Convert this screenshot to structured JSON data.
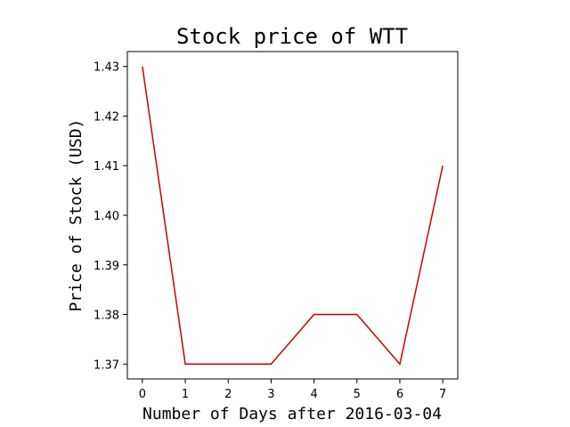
{
  "chart_data": {
    "type": "line",
    "title": "Stock price of WTT",
    "xlabel": "Number of Days after 2016-03-04",
    "ylabel": "Price of Stock (USD)",
    "x": [
      0,
      1,
      2,
      3,
      4,
      5,
      6,
      7
    ],
    "series": [
      {
        "values": [
          1.43,
          1.37,
          1.37,
          1.37,
          1.38,
          1.38,
          1.37,
          1.41
        ],
        "color": "#cc0000"
      }
    ],
    "xlim": [
      -0.35,
      7.35
    ],
    "ylim": [
      1.367,
      1.433
    ],
    "xticks": [
      0,
      1,
      2,
      3,
      4,
      5,
      6,
      7
    ],
    "xtick_labels": [
      "0",
      "1",
      "2",
      "3",
      "4",
      "5",
      "6",
      "7"
    ],
    "yticks": [
      1.37,
      1.38,
      1.39,
      1.4,
      1.41,
      1.42,
      1.43
    ],
    "ytick_labels": [
      "1.37",
      "1.38",
      "1.39",
      "1.40",
      "1.41",
      "1.42",
      "1.43"
    ],
    "grid": false,
    "legend": false
  }
}
